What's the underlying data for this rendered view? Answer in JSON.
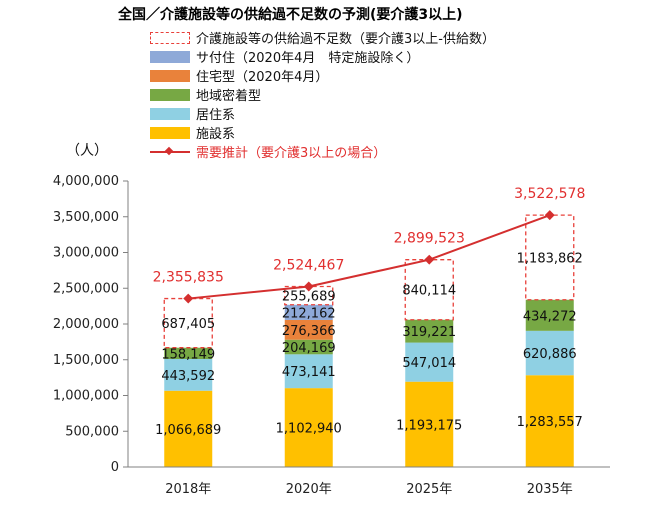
{
  "title": "全国／介護施設等の供給過不足数の予測(要介護3以上)",
  "unit": "（人）",
  "legend": [
    {
      "label": "介護施設等の供給過不足数（要介護3以上-供給数）",
      "style": "dashed",
      "color": "#e8403a"
    },
    {
      "label": "サ付住（2020年4月　特定施設除く）",
      "style": "box",
      "color": "#8ea9d8"
    },
    {
      "label": "住宅型（2020年4月）",
      "style": "box",
      "color": "#e9823b"
    },
    {
      "label": "地域密着型",
      "style": "box",
      "color": "#77a844"
    },
    {
      "label": "居住系",
      "style": "box",
      "color": "#8fd0e3"
    },
    {
      "label": "施設系",
      "style": "box",
      "color": "#ffc000"
    },
    {
      "label": "需要推計（要介護3以上の場合）",
      "style": "line",
      "color": "#d42f2f"
    }
  ],
  "chart_data": {
    "type": "bar",
    "stacked": true,
    "categories": [
      "2018年",
      "2020年",
      "2025年",
      "2035年"
    ],
    "ylim": [
      0,
      4000000
    ],
    "yticks": [
      0,
      500000,
      1000000,
      1500000,
      2000000,
      2500000,
      3000000,
      3500000,
      4000000
    ],
    "ytick_labels": [
      "0",
      "500,000",
      "1,000,000",
      "1,500,000",
      "2,000,000",
      "2,500,000",
      "3,000,000",
      "3,500,000",
      "4,000,000"
    ],
    "series": [
      {
        "name": "施設系",
        "color": "#ffc000",
        "values": [
          1066689,
          1102940,
          1193175,
          1283557
        ],
        "labels": [
          "1,066,689",
          "1,102,940",
          "1,193,175",
          "1,283,557"
        ]
      },
      {
        "name": "居住系",
        "color": "#8fd0e3",
        "values": [
          443592,
          473141,
          547014,
          620886
        ],
        "labels": [
          "443,592",
          "473,141",
          "547,014",
          "620,886"
        ]
      },
      {
        "name": "地域密着型",
        "color": "#77a844",
        "values": [
          158149,
          204169,
          319221,
          434272
        ],
        "labels": [
          "158,149",
          "204,169",
          "319,221",
          "434,272"
        ]
      },
      {
        "name": "住宅型（2020年4月）",
        "color": "#e9823b",
        "values": [
          0,
          276366,
          0,
          0
        ],
        "labels": [
          "",
          "276,366",
          "",
          ""
        ]
      },
      {
        "name": "サ付住（2020年4月　特定施設除く）",
        "color": "#8ea9d8",
        "values": [
          0,
          212162,
          0,
          0
        ],
        "labels": [
          "",
          "212,162",
          "",
          ""
        ]
      },
      {
        "name": "介護施設等の供給過不足数（要介護3以上-供給数）",
        "color": "#e8403a",
        "dashed": true,
        "values": [
          687405,
          255689,
          840114,
          1183862
        ],
        "labels": [
          "687,405",
          "255,689",
          "840,114",
          "1,183,862"
        ]
      }
    ],
    "line": {
      "name": "需要推計（要介護3以上の場合）",
      "color": "#d42f2f",
      "values": [
        2355835,
        2524467,
        2899523,
        3522578
      ],
      "labels": [
        "2,355,835",
        "2,524,467",
        "2,899,523",
        "3,522,578"
      ]
    },
    "grid": false,
    "legend_position": "top"
  }
}
